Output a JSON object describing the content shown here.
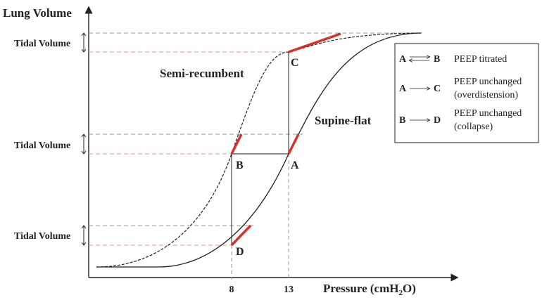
{
  "axes": {
    "y_label": "Lung Volume",
    "x_label_main": "Pressure (cmH",
    "x_label_sub": "2",
    "x_label_end": "O)",
    "x_ticks": [
      "8",
      "13"
    ]
  },
  "tidal_volume_labels": [
    "Tidal Volume",
    "Tidal Volume",
    "Tidal Volume"
  ],
  "curves": {
    "semi_recumbent": "Semi-recumbent",
    "supine_flat": "Supine-flat"
  },
  "points": {
    "A": "A",
    "B": "B",
    "C": "C",
    "D": "D"
  },
  "legend": [
    {
      "from": "A",
      "to": "B",
      "line1": "PEEP titrated",
      "line2": ""
    },
    {
      "from": "A",
      "to": "C",
      "line1": "PEEP unchanged",
      "line2": "(overdistension)"
    },
    {
      "from": "B",
      "to": "D",
      "line1": "PEEP unchanged",
      "line2": "(collapse)"
    }
  ],
  "colors": {
    "tidal_segment": "#d9302c",
    "axis": "#222222",
    "guide_gray": "#9a9a9a",
    "guide_red": "#e8938f"
  }
}
